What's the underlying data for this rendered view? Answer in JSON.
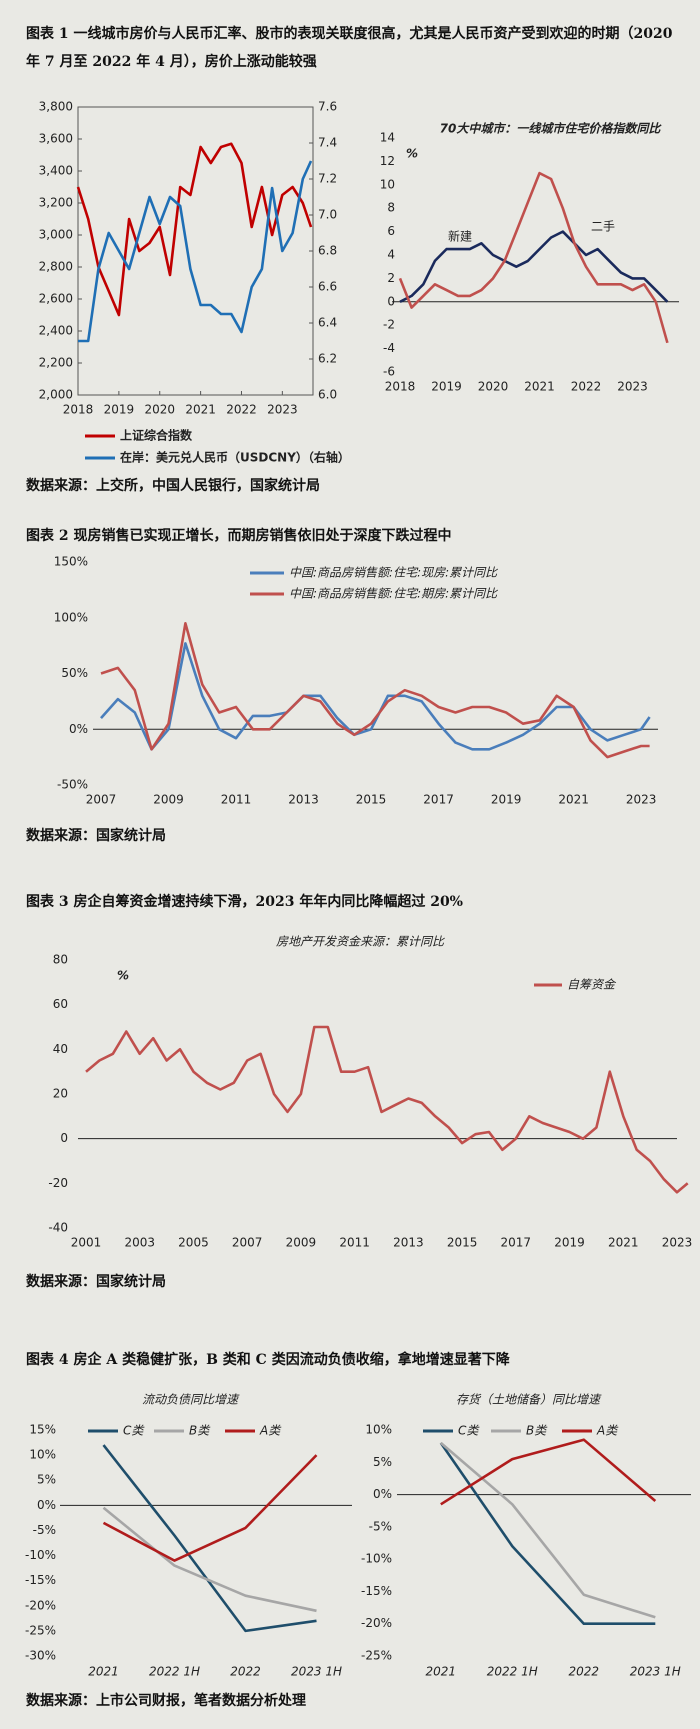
{
  "figures": [
    {
      "caption": "图表 1 一线城市房价与人民币汇率、股市的表现关联度很高，尤其是人民币资产受到欢迎的时期（2020 年 7 月至 2022 年 4 月），房价上涨动能较强",
      "source": "数据来源：上交所，中国人民银行，国家统计局"
    },
    {
      "caption": "图表 2 现房销售已实现正增长，而期房销售依旧处于深度下跌过程中",
      "source": "数据来源：国家统计局"
    },
    {
      "caption": "图表 3 房企自筹资金增速持续下滑，2023 年年内同比降幅超过 20%",
      "source": "数据来源：国家统计局"
    },
    {
      "caption": "图表 4 房企 A 类稳健扩张，B 类和 C 类因流动负债收缩，拿地增速显著下降",
      "source": "数据来源：上市公司财报，笔者数据分析处理"
    }
  ],
  "chart_data": [
    {
      "type": "line",
      "legend": "bottom",
      "x": [
        2018,
        2018.25,
        2018.5,
        2018.75,
        2019,
        2019.25,
        2019.5,
        2019.75,
        2020,
        2020.25,
        2020.5,
        2020.75,
        2021,
        2021.25,
        2021.5,
        2021.75,
        2022,
        2022.25,
        2022.5,
        2022.75,
        2023,
        2023.25,
        2023.5,
        2023.7
      ],
      "xlim": [
        2018,
        2023.75
      ],
      "xticks": [
        2018,
        2019,
        2020,
        2021,
        2022,
        2023
      ],
      "ylim": [
        2000,
        3800
      ],
      "yticks": [
        {
          "value": 2000,
          "label": "2,000"
        },
        {
          "value": 2200,
          "label": "2,200"
        },
        {
          "value": 2400,
          "label": "2,400"
        },
        {
          "value": 2600,
          "label": "2,600"
        },
        {
          "value": 2800,
          "label": "2,800"
        },
        {
          "value": 3000,
          "label": "3,000"
        },
        {
          "value": 3200,
          "label": "3,200"
        },
        {
          "value": 3400,
          "label": "3,400"
        },
        {
          "value": 3600,
          "label": "3,600"
        },
        {
          "value": 3800,
          "label": "3,800"
        }
      ],
      "y2lim": [
        6.0,
        7.6
      ],
      "y2ticks": [
        {
          "value": 6.0,
          "label": "6.0"
        },
        6.2,
        6.4,
        6.6,
        6.8,
        {
          "value": 7.0,
          "label": "7.0"
        },
        7.2,
        7.4,
        7.6
      ],
      "series": [
        {
          "name": "上证综合指数",
          "color": "#c00000",
          "values": [
            3300,
            3100,
            2800,
            2650,
            2500,
            3100,
            2900,
            2950,
            3050,
            2750,
            3300,
            3250,
            3550,
            3450,
            3550,
            3570,
            3450,
            3050,
            3300,
            3000,
            3250,
            3300,
            3200,
            3050
          ]
        },
        {
          "name": "在岸：美元兑人民币（USDCNY）（右轴）",
          "color": "#1f6fb5",
          "axis": "y2",
          "values": [
            6.3,
            6.3,
            6.7,
            6.9,
            6.8,
            6.7,
            6.9,
            7.1,
            6.95,
            7.1,
            7.05,
            6.7,
            6.5,
            6.5,
            6.45,
            6.45,
            6.35,
            6.6,
            6.7,
            7.15,
            6.8,
            6.9,
            7.2,
            7.3
          ]
        }
      ]
    },
    {
      "type": "line",
      "legend": "inline",
      "title": "70大中城市：一线城市住宅价格指数同比",
      "y_unit": "%",
      "x": [
        2018,
        2018.25,
        2018.5,
        2018.75,
        2019,
        2019.25,
        2019.5,
        2019.75,
        2020,
        2020.25,
        2020.5,
        2020.75,
        2021,
        2021.25,
        2021.5,
        2021.75,
        2022,
        2022.25,
        2022.5,
        2022.75,
        2023,
        2023.25,
        2023.5,
        2023.75
      ],
      "xlim": [
        2018,
        2024
      ],
      "xticks": [
        2018,
        2019,
        2020,
        2021,
        2022,
        2023
      ],
      "ylim": [
        -6,
        14
      ],
      "yticks": [
        -6,
        -4,
        -2,
        0,
        2,
        4,
        6,
        8,
        10,
        12,
        14
      ],
      "series": [
        {
          "name": "新建",
          "color": "#1a2a5c",
          "values": [
            0,
            0.5,
            1.5,
            3.5,
            4.5,
            4.5,
            4.5,
            5,
            4,
            3.5,
            3,
            3.5,
            4.5,
            5.5,
            6,
            5,
            4,
            4.5,
            3.5,
            2.5,
            2,
            2,
            1,
            0
          ]
        },
        {
          "name": "二手",
          "color": "#c0504d",
          "values": [
            2,
            -0.5,
            0.5,
            1.5,
            1,
            0.5,
            0.5,
            1,
            2,
            3.5,
            6,
            8.5,
            11,
            10.5,
            8,
            5,
            3,
            1.5,
            1.5,
            1.5,
            1,
            1.5,
            0,
            -3.5
          ]
        }
      ]
    },
    {
      "type": "line",
      "legend": "top",
      "x": [
        2007,
        2007.5,
        2008,
        2008.5,
        2009,
        2009.5,
        2010,
        2010.5,
        2011,
        2011.5,
        2012,
        2012.5,
        2013,
        2013.5,
        2014,
        2014.5,
        2015,
        2015.5,
        2016,
        2016.5,
        2017,
        2017.5,
        2018,
        2018.5,
        2019,
        2019.5,
        2020,
        2020.5,
        2021,
        2021.5,
        2022,
        2022.5,
        2023,
        2023.25
      ],
      "xlim": [
        2007,
        2023.5
      ],
      "xticks": [
        2007,
        2009,
        2011,
        2013,
        2015,
        2017,
        2019,
        2021,
        2023
      ],
      "ylim": [
        -50,
        150
      ],
      "yticks": [
        {
          "value": -50,
          "label": "-50%"
        },
        {
          "value": 0,
          "label": "0%"
        },
        {
          "value": 50,
          "label": "50%"
        },
        {
          "value": 100,
          "label": "100%"
        },
        {
          "value": 150,
          "label": "150%"
        }
      ],
      "series": [
        {
          "name": "中国:商品房销售额:住宅:现房:累计同比",
          "color": "#4a7ebb",
          "values": [
            10,
            27,
            15,
            -18,
            0,
            77,
            30,
            0,
            -8,
            12,
            12,
            15,
            30,
            30,
            10,
            -5,
            0,
            30,
            30,
            25,
            5,
            -12,
            -18,
            -18,
            -12,
            -5,
            5,
            20,
            20,
            0,
            -10,
            -5,
            0,
            11
          ]
        },
        {
          "name": "中国:商品房销售额:住宅:期房:累计同比",
          "color": "#c0504d",
          "values": [
            50,
            55,
            35,
            -18,
            5,
            95,
            40,
            15,
            20,
            0,
            0,
            15,
            30,
            25,
            5,
            -5,
            5,
            25,
            35,
            30,
            20,
            15,
            20,
            20,
            15,
            5,
            8,
            30,
            20,
            -10,
            -25,
            -20,
            -15,
            -15
          ]
        }
      ]
    },
    {
      "type": "line",
      "legend": "right",
      "title": "房地产开发资金来源：累计同比",
      "y_unit": "%",
      "x": [
        2001,
        2001.5,
        2002,
        2002.5,
        2003,
        2003.5,
        2004,
        2004.5,
        2005,
        2005.5,
        2006,
        2006.5,
        2007,
        2007.5,
        2008,
        2008.5,
        2009,
        2009.5,
        2010,
        2010.5,
        2011,
        2011.5,
        2012,
        2012.5,
        2013,
        2013.5,
        2014,
        2014.5,
        2015,
        2015.5,
        2016,
        2016.5,
        2017,
        2017.5,
        2018,
        2018.5,
        2019,
        2019.5,
        2020,
        2020.5,
        2021,
        2021.5,
        2022,
        2022.5,
        2023,
        2023.4
      ],
      "xlim": [
        2001,
        2023
      ],
      "xticks": [
        2001,
        2003,
        2005,
        2007,
        2009,
        2011,
        2013,
        2015,
        2017,
        2019,
        2021,
        2023
      ],
      "ylim": [
        -40,
        80
      ],
      "yticks": [
        -40,
        -20,
        0,
        20,
        40,
        60,
        80
      ],
      "series": [
        {
          "name": "自筹资金",
          "color": "#c0504d",
          "values": [
            30,
            35,
            38,
            48,
            38,
            45,
            35,
            40,
            30,
            25,
            22,
            25,
            35,
            38,
            20,
            12,
            20,
            50,
            50,
            30,
            30,
            32,
            12,
            15,
            18,
            16,
            10,
            5,
            -2,
            2,
            3,
            -5,
            0,
            10,
            7,
            5,
            3,
            0,
            5,
            30,
            10,
            -5,
            -10,
            -18,
            -24,
            -20
          ]
        }
      ]
    },
    {
      "type": "line",
      "legend": "top",
      "title": "流动负债同比增速",
      "categories": [
        "2021",
        "2022 1H",
        "2022",
        "2023 1H"
      ],
      "ylim": [
        -30,
        15
      ],
      "yticks": [
        {
          "value": -30,
          "label": "-30%"
        },
        {
          "value": -25,
          "label": "-25%"
        },
        {
          "value": -20,
          "label": "-20%"
        },
        {
          "value": -15,
          "label": "-15%"
        },
        {
          "value": -10,
          "label": "-10%"
        },
        {
          "value": -5,
          "label": "-5%"
        },
        {
          "value": 0,
          "label": "0%"
        },
        {
          "value": 5,
          "label": "5%"
        },
        {
          "value": 10,
          "label": "10%"
        },
        {
          "value": 15,
          "label": "15%"
        }
      ],
      "series": [
        {
          "name": "C类",
          "color": "#1f4e6b",
          "values": [
            12,
            -6,
            -25,
            -23
          ]
        },
        {
          "name": "B类",
          "color": "#a6a6a6",
          "values": [
            -0.5,
            -12,
            -18,
            -21
          ]
        },
        {
          "name": "A类",
          "color": "#b01c1c",
          "values": [
            -3.5,
            -11,
            -4.5,
            10
          ]
        }
      ]
    },
    {
      "type": "line",
      "legend": "top",
      "title": "存货（土地储备）同比增速",
      "categories": [
        "2021",
        "2022 1H",
        "2022",
        "2023 1H"
      ],
      "ylim": [
        -25,
        10
      ],
      "yticks": [
        {
          "value": -25,
          "label": "-25%"
        },
        {
          "value": -20,
          "label": "-20%"
        },
        {
          "value": -15,
          "label": "-15%"
        },
        {
          "value": -10,
          "label": "-10%"
        },
        {
          "value": -5,
          "label": "-5%"
        },
        {
          "value": 0,
          "label": "0%"
        },
        {
          "value": 5,
          "label": "5%"
        },
        {
          "value": 10,
          "label": "10%"
        }
      ],
      "series": [
        {
          "name": "C类",
          "color": "#1f4e6b",
          "values": [
            8,
            -8,
            -20,
            -20
          ]
        },
        {
          "name": "B类",
          "color": "#a6a6a6",
          "values": [
            8,
            -1.5,
            -15.5,
            -19
          ]
        },
        {
          "name": "A类",
          "color": "#b01c1c",
          "values": [
            -1.5,
            5.5,
            8.5,
            -1
          ]
        }
      ]
    }
  ]
}
